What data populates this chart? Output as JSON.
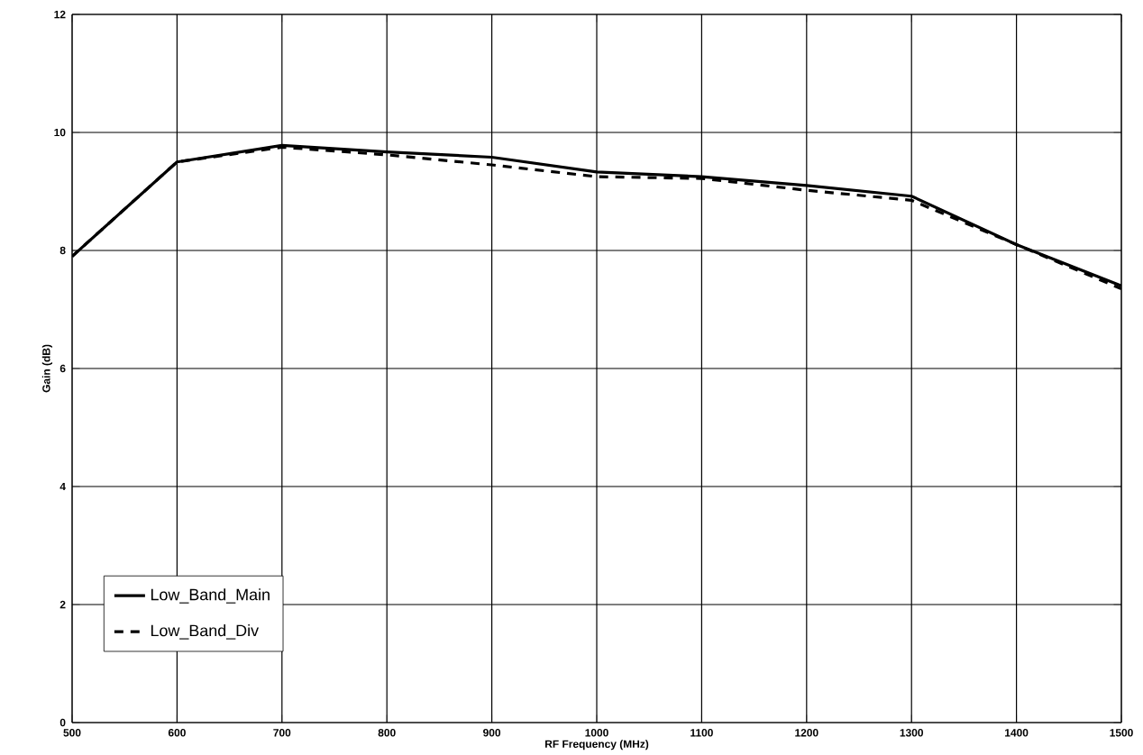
{
  "chart_data": {
    "type": "line",
    "xlabel": "RF Frequency (MHz)",
    "ylabel": "Gain (dB)",
    "x": [
      500,
      600,
      700,
      800,
      900,
      1000,
      1100,
      1200,
      1300,
      1400,
      1500
    ],
    "series": [
      {
        "name": "Low_Band_Main",
        "color": "#000000",
        "line_style": "solid",
        "values": [
          7.9,
          9.5,
          9.78,
          9.67,
          9.58,
          9.33,
          9.25,
          9.1,
          8.92,
          8.1,
          7.4
        ]
      },
      {
        "name": "Low_Band_Div",
        "color": "#000000",
        "line_style": "dashed",
        "values": [
          7.9,
          9.5,
          9.75,
          9.62,
          9.45,
          9.25,
          9.22,
          9.02,
          8.85,
          8.1,
          7.35
        ]
      }
    ],
    "xlim": [
      500,
      1500
    ],
    "ylim": [
      0,
      12
    ],
    "xticks": [
      500,
      600,
      700,
      800,
      900,
      1000,
      1100,
      1200,
      1300,
      1400,
      1500
    ],
    "yticks": [
      0,
      2,
      4,
      6,
      8,
      10,
      12
    ],
    "grid": true,
    "legend": "bottom left",
    "marker": "none"
  }
}
